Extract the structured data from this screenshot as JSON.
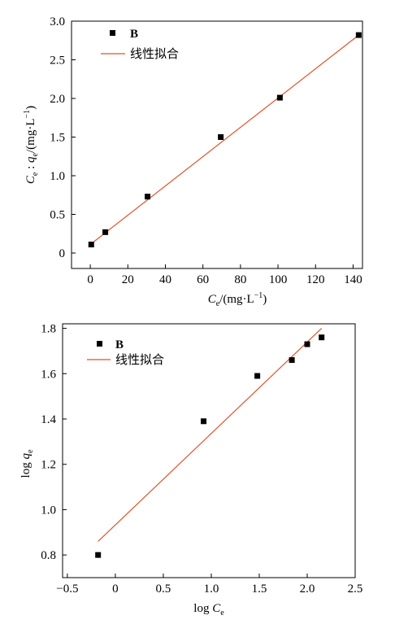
{
  "chart_data": [
    {
      "type": "scatter",
      "xlabel": "Ce/(mg·L−1)",
      "ylabel": "Ce : qe/(mg·L−1)",
      "xlim": [
        -10,
        145
      ],
      "ylim": [
        -0.2,
        3.0
      ],
      "xticks": [
        0,
        20,
        40,
        60,
        80,
        100,
        120,
        140
      ],
      "xtick_labels": [
        "0",
        "20",
        "40",
        "60",
        "80",
        "100",
        "120",
        "140"
      ],
      "yticks": [
        0,
        0.5,
        1.0,
        1.5,
        2.0,
        2.5,
        3.0
      ],
      "ytick_labels": [
        "0",
        "0.5",
        "1.0",
        "1.5",
        "2.0",
        "2.5",
        "3.0"
      ],
      "series": [
        {
          "name": "B",
          "kind": "points",
          "color": "#000000",
          "x": [
            0.5,
            8,
            30.5,
            69.5,
            101,
            143
          ],
          "y": [
            0.11,
            0.27,
            0.73,
            1.5,
            2.01,
            2.82
          ]
        },
        {
          "name": "线性拟合",
          "kind": "line",
          "color": "#e0522a",
          "x": [
            0.5,
            143
          ],
          "y": [
            0.12,
            2.82
          ]
        }
      ],
      "legend": "top-left",
      "grid": false
    },
    {
      "type": "scatter",
      "xlabel": "log Ce",
      "ylabel": "log qe",
      "xlim": [
        -0.55,
        2.5
      ],
      "ylim": [
        0.7,
        1.82
      ],
      "xticks": [
        -0.5,
        0,
        0.5,
        1.0,
        1.5,
        2.0,
        2.5
      ],
      "xtick_labels": [
        "−0.5",
        "0",
        "0.5",
        "1.0",
        "1.5",
        "2.0",
        "2.5"
      ],
      "yticks": [
        0.8,
        1.0,
        1.2,
        1.4,
        1.6,
        1.8
      ],
      "ytick_labels": [
        "0.8",
        "1.0",
        "1.2",
        "1.4",
        "1.6",
        "1.8"
      ],
      "series": [
        {
          "name": "B",
          "kind": "points",
          "color": "#000000",
          "x": [
            -0.18,
            0.92,
            1.48,
            1.84,
            2.0,
            2.15
          ],
          "y": [
            0.8,
            1.39,
            1.59,
            1.66,
            1.73,
            1.76
          ]
        },
        {
          "name": "线性拟合",
          "kind": "line",
          "color": "#e0522a",
          "x": [
            -0.18,
            2.15
          ],
          "y": [
            0.86,
            1.8
          ]
        }
      ],
      "legend": "top-left",
      "grid": false
    }
  ]
}
